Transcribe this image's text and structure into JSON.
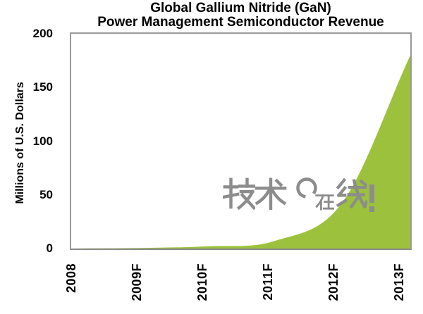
{
  "title": {
    "line1": "Global Gallium Nitride (GaN)",
    "line2": "Power Management Semiconductor Revenue"
  },
  "y_axis": {
    "label": "Millions of U.S. Dollars"
  },
  "watermark": {
    "text": "技术在线!",
    "prefix_char1": "技",
    "prefix_char2": "术",
    "ring_icon": "open-circle",
    "overlay_char": "在",
    "suffix_char": "线",
    "exclamation": "!",
    "color": "#8C8C8C"
  },
  "chart_data": {
    "type": "area",
    "title": "Global Gallium Nitride (GaN) Power Management Semiconductor Revenue",
    "categories": [
      "2008",
      "2009F",
      "2010F",
      "2011F",
      "2012F",
      "2013F"
    ],
    "values": [
      0,
      0.5,
      2,
      7,
      43,
      180
    ],
    "xlabel": "",
    "ylabel": "Millions of U.S. Dollars",
    "ylim": [
      0,
      200
    ],
    "yticks": [
      0,
      50,
      100,
      150,
      200
    ],
    "grid": false,
    "legend": false,
    "smoothed": true,
    "area_color": "#9CC13C",
    "border_color": "#9A9A9A",
    "text_color": "#000000"
  }
}
